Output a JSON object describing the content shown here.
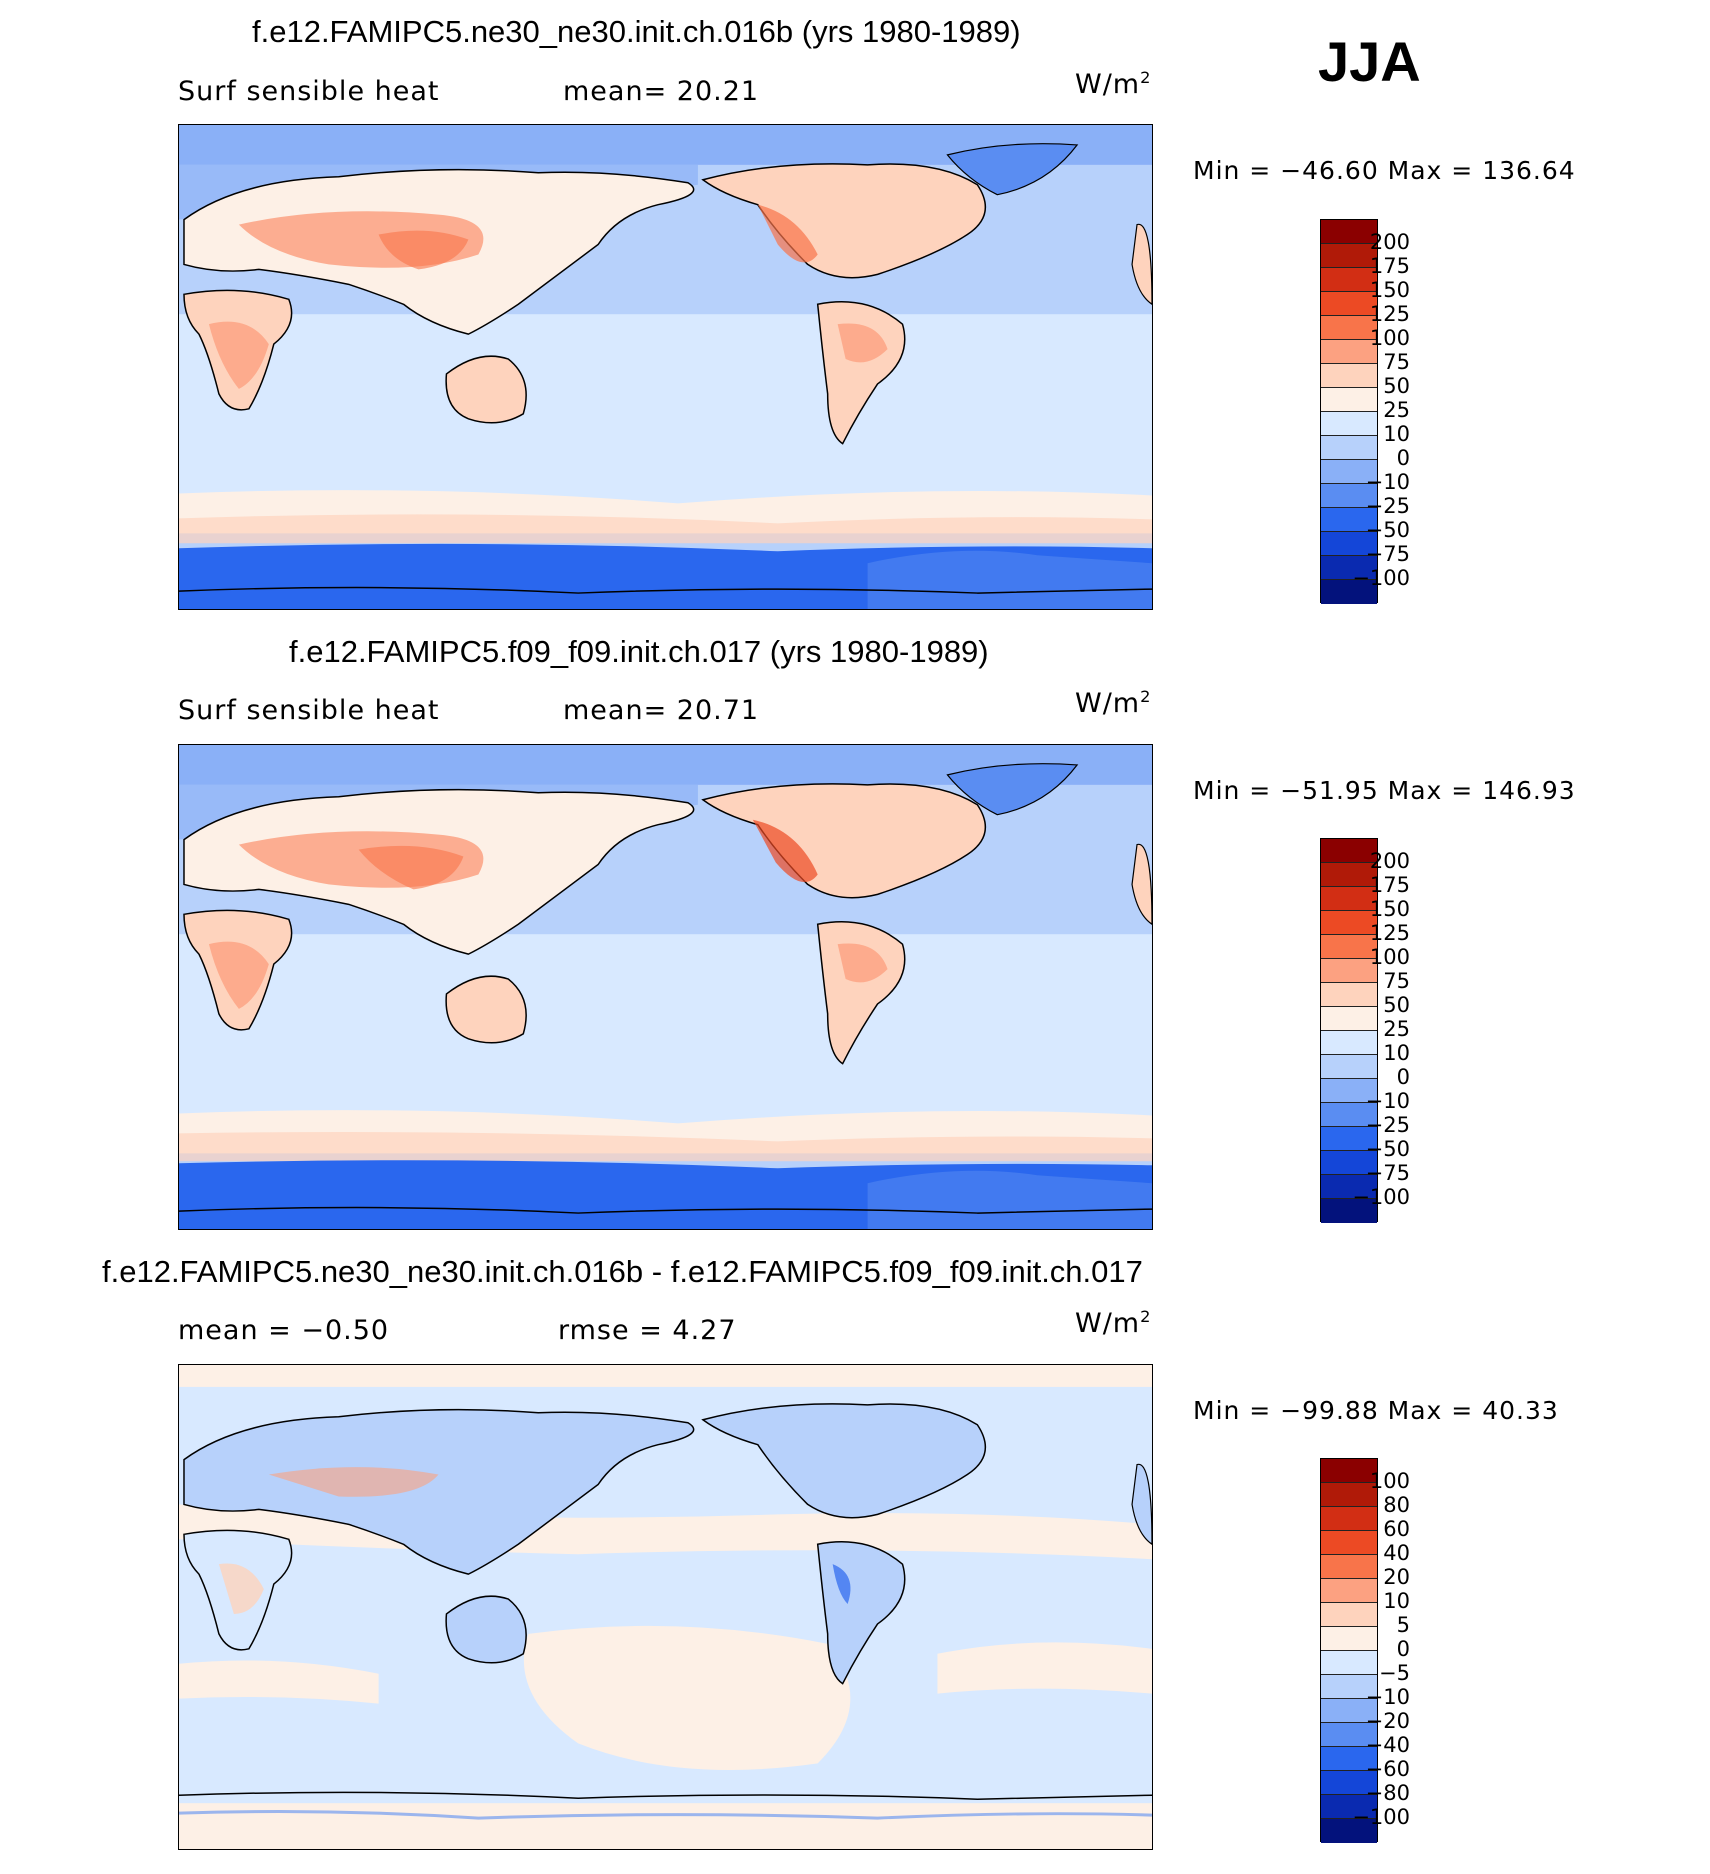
{
  "season": "JJA",
  "panels": [
    {
      "title": "f.e12.FAMIPC5.ne30_ne30.init.ch.016b (yrs 1980-1989)",
      "left_label": "Surf sensible heat",
      "mid_label": "mean=   20.21",
      "units": "W/m",
      "units_sup": "2",
      "minmax": "Min  =  −46.60  Max  =  136.64",
      "colorbar": {
        "colors": [
          "#8b0000",
          "#b01a08",
          "#d22e14",
          "#ec4a24",
          "#f8744a",
          "#fca181",
          "#fed3bd",
          "#fdf0e6",
          "#d8e9ff",
          "#b7d1fb",
          "#8ab0f7",
          "#5a8df2",
          "#2a67ee",
          "#1446d8",
          "#0a2ab0",
          "#03127c"
        ],
        "ticks": [
          "200",
          "175",
          "150",
          "125",
          "100",
          "75",
          "50",
          "25",
          "10",
          "0",
          "−10",
          "−25",
          "−50",
          "−75",
          "−100"
        ]
      }
    },
    {
      "title": "f.e12.FAMIPC5.f09_f09.init.ch.017 (yrs 1980-1989)",
      "left_label": "Surf sensible heat",
      "mid_label": "mean=   20.71",
      "units": "W/m",
      "units_sup": "2",
      "minmax": "Min  =  −51.95  Max  =  146.93",
      "colorbar": {
        "colors": [
          "#8b0000",
          "#b01a08",
          "#d22e14",
          "#ec4a24",
          "#f8744a",
          "#fca181",
          "#fed3bd",
          "#fdf0e6",
          "#d8e9ff",
          "#b7d1fb",
          "#8ab0f7",
          "#5a8df2",
          "#2a67ee",
          "#1446d8",
          "#0a2ab0",
          "#03127c"
        ],
        "ticks": [
          "200",
          "175",
          "150",
          "125",
          "100",
          "75",
          "50",
          "25",
          "10",
          "0",
          "−10",
          "−25",
          "−50",
          "−75",
          "−100"
        ]
      }
    },
    {
      "title": "f.e12.FAMIPC5.ne30_ne30.init.ch.016b - f.e12.FAMIPC5.f09_f09.init.ch.017",
      "left_label": "mean  =    −0.50",
      "mid_label": "rmse  =     4.27",
      "units": "W/m",
      "units_sup": "2",
      "minmax": "Min  =  −99.88  Max  =    40.33",
      "colorbar": {
        "colors": [
          "#8b0000",
          "#b01a08",
          "#d22e14",
          "#ec4a24",
          "#f8744a",
          "#fca181",
          "#fed3bd",
          "#fdf0e6",
          "#d8e9ff",
          "#b7d1fb",
          "#8ab0f7",
          "#5a8df2",
          "#2a67ee",
          "#1446d8",
          "#0a2ab0",
          "#03127c"
        ],
        "ticks": [
          "100",
          "80",
          "60",
          "40",
          "20",
          "10",
          "5",
          "0",
          "−5",
          "−10",
          "−20",
          "−40",
          "−60",
          "−80",
          "−100"
        ]
      }
    }
  ]
}
